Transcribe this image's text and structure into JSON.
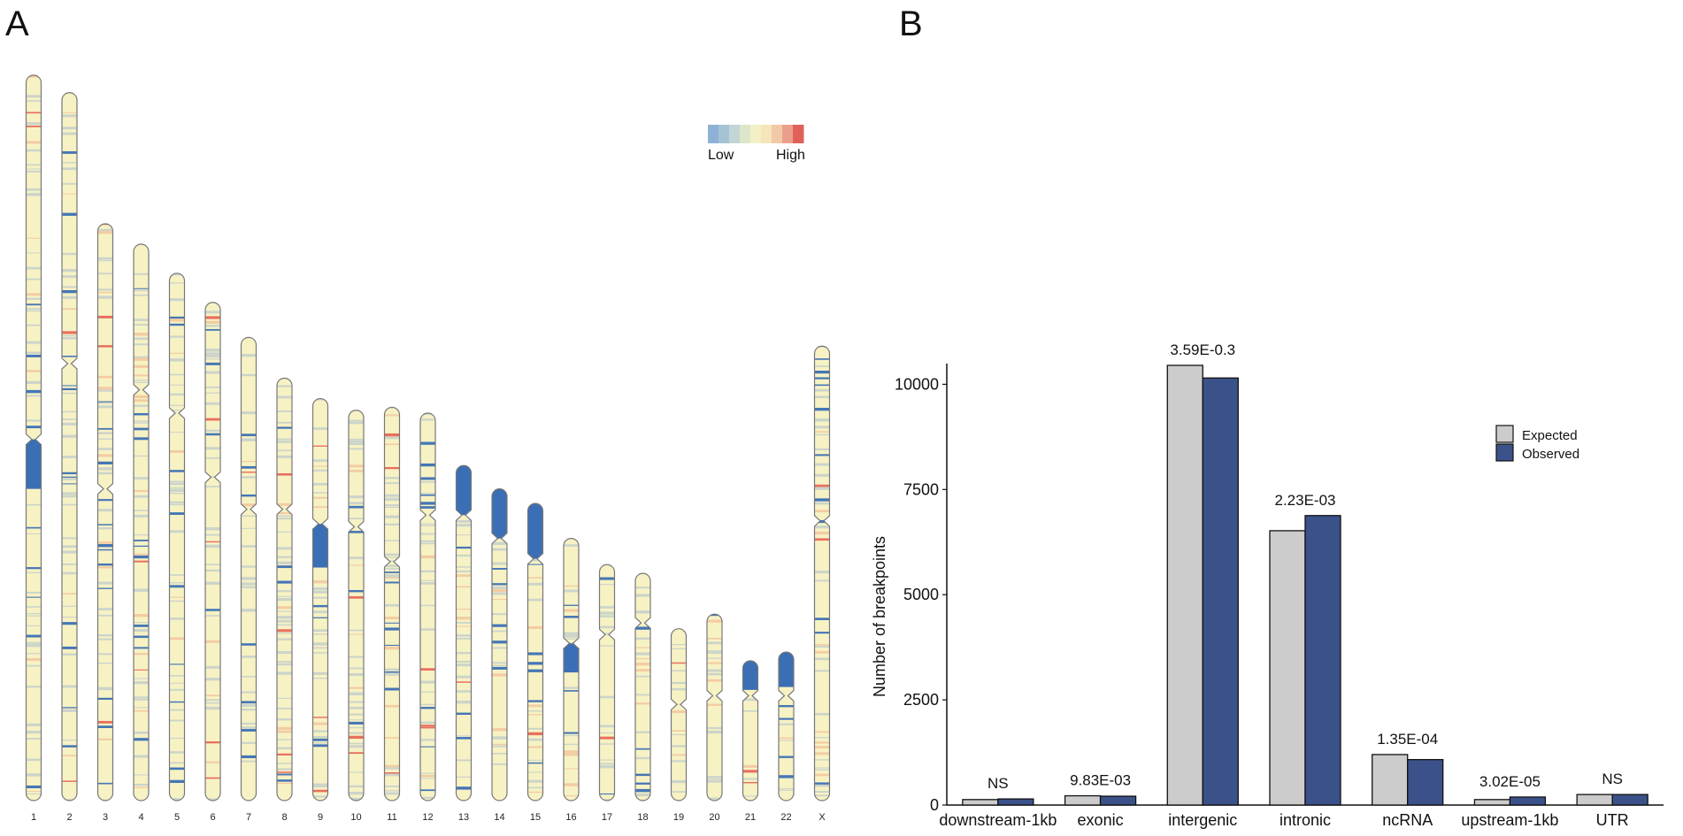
{
  "panel_a": {
    "letter": "A",
    "colors": {
      "chromosome_fill": "#f7f2c4",
      "chromosome_outline": "#777777",
      "low_band": "#3a6fb5",
      "mid_band": "#a9bccf",
      "high_band": "#e8675a",
      "warm_band": "#f2c9a0"
    },
    "density_scale": {
      "low_label": "Low",
      "high_label": "High",
      "colors": [
        "#8fb1d6",
        "#a6c3d6",
        "#c3d5d5",
        "#dde6c9",
        "#f3f0c7",
        "#f6e5b9",
        "#f2c9a6",
        "#ea9f8d",
        "#e0615a"
      ]
    },
    "chart_data": {
      "type": "ideogram",
      "title": "",
      "chromosomes": [
        {
          "label": "1",
          "length": 249,
          "centromere": 125,
          "heterochromatin": [
            125,
            142
          ]
        },
        {
          "label": "2",
          "length": 243,
          "centromere": 93,
          "heterochromatin": null
        },
        {
          "label": "3",
          "length": 198,
          "centromere": 91,
          "heterochromatin": null
        },
        {
          "label": "4",
          "length": 191,
          "centromere": 50,
          "heterochromatin": null
        },
        {
          "label": "5",
          "length": 181,
          "centromere": 48,
          "heterochromatin": null
        },
        {
          "label": "6",
          "length": 171,
          "centromere": 60,
          "heterochromatin": null
        },
        {
          "label": "7",
          "length": 159,
          "centromere": 59,
          "heterochromatin": null
        },
        {
          "label": "8",
          "length": 145,
          "centromere": 45,
          "heterochromatin": null
        },
        {
          "label": "9",
          "length": 138,
          "centromere": 43,
          "heterochromatin": [
            43,
            58
          ]
        },
        {
          "label": "10",
          "length": 134,
          "centromere": 40,
          "heterochromatin": null
        },
        {
          "label": "11",
          "length": 135,
          "centromere": 53,
          "heterochromatin": null
        },
        {
          "label": "12",
          "length": 133,
          "centromere": 35,
          "heterochromatin": null
        },
        {
          "label": "13",
          "length": 115,
          "centromere": 17,
          "heterochromatin": [
            0,
            17
          ]
        },
        {
          "label": "14",
          "length": 107,
          "centromere": 17,
          "heterochromatin": [
            0,
            17
          ]
        },
        {
          "label": "15",
          "length": 102,
          "centromere": 19,
          "heterochromatin": [
            0,
            19
          ]
        },
        {
          "label": "16",
          "length": 90,
          "centromere": 36,
          "heterochromatin": [
            36,
            46
          ]
        },
        {
          "label": "17",
          "length": 81,
          "centromere": 24,
          "heterochromatin": null
        },
        {
          "label": "18",
          "length": 78,
          "centromere": 17,
          "heterochromatin": null
        },
        {
          "label": "19",
          "length": 59,
          "centromere": 26,
          "heterochromatin": null
        },
        {
          "label": "20",
          "length": 64,
          "centromere": 28,
          "heterochromatin": null
        },
        {
          "label": "21",
          "length": 48,
          "centromere": 12,
          "heterochromatin": [
            0,
            10
          ]
        },
        {
          "label": "22",
          "length": 51,
          "centromere": 15,
          "heterochromatin": [
            0,
            12
          ]
        },
        {
          "label": "X",
          "length": 156,
          "centromere": 60,
          "heterochromatin": null
        }
      ]
    }
  },
  "panel_b": {
    "letter": "B",
    "colors": {
      "expected": "#cccccc",
      "observed": "#3b5189",
      "bar_outline": "#111111"
    },
    "legend": {
      "expected_label": "Expected",
      "observed_label": "Observed",
      "placement": "top-right"
    },
    "chart_data": {
      "type": "bar",
      "title": "",
      "xlabel": "",
      "ylabel": "Number of breakpoints",
      "ylim": [
        0,
        10450
      ],
      "yticks": [
        0,
        2500,
        5000,
        7500,
        10000
      ],
      "categories": [
        "downstream-1kb",
        "exonic",
        "intergenic",
        "intronic",
        "ncRNA",
        "upstream-1kb",
        "UTR"
      ],
      "series": [
        {
          "name": "Expected",
          "values": [
            130,
            220,
            10450,
            6520,
            1200,
            130,
            250
          ]
        },
        {
          "name": "Observed",
          "values": [
            145,
            210,
            10150,
            6880,
            1080,
            190,
            250
          ]
        }
      ],
      "annotations": [
        "NS",
        "9.83E-03",
        "3.59E-0.3",
        "2.23E-03",
        "1.35E-04",
        "3.02E-05",
        "NS"
      ]
    }
  }
}
